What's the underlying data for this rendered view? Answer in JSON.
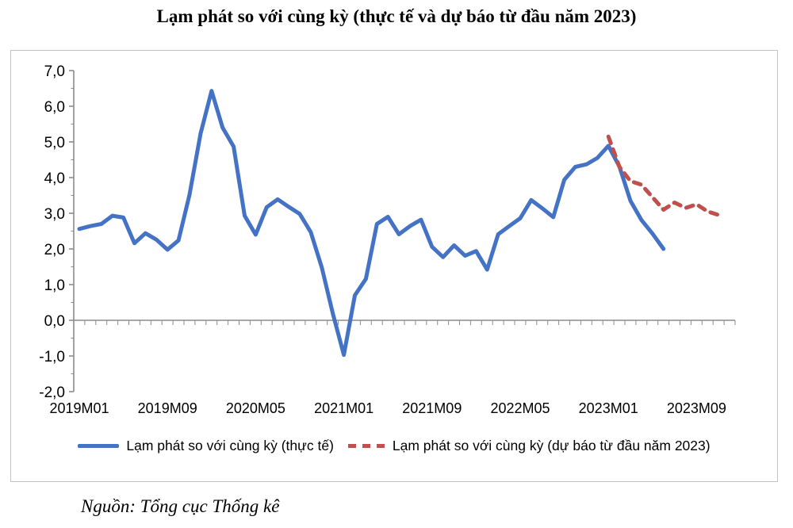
{
  "source": "Nguồn: Tổng cục Thống kê",
  "chart_data": {
    "type": "line",
    "title": "Lạm phát so với cùng kỳ (thực tế và dự báo từ đầu năm 2023)",
    "grid": "off",
    "legend_position": "bottom",
    "x_axis": {
      "start_month": "2019M01",
      "months_total": 60,
      "tick_labels": [
        "2019M01",
        "2019M09",
        "2020M05",
        "2021M01",
        "2021M09",
        "2022M05",
        "2023M01",
        "2023M09"
      ],
      "label_step_months": 8
    },
    "y_axis": {
      "ylim": [
        -2.0,
        7.0
      ],
      "tick_values": [
        7,
        6,
        5,
        4,
        3,
        2,
        1,
        0,
        -1,
        -2
      ],
      "tick_labels": [
        "7,0",
        "6,0",
        "5,0",
        "4,0",
        "3,0",
        "2,0",
        "1,0",
        "0,0",
        "-1,0",
        "-2,0"
      ]
    },
    "axis_color": "#8c8c8c",
    "series": [
      {
        "name": "Lạm phát so với cùng kỳ (thực tế)",
        "color": "#4472C4",
        "style": "solid",
        "start_month_index": 0,
        "values": [
          2.56,
          2.64,
          2.7,
          2.93,
          2.88,
          2.16,
          2.44,
          2.26,
          1.98,
          2.24,
          3.52,
          5.23,
          6.43,
          5.4,
          4.87,
          2.93,
          2.4,
          3.17,
          3.39,
          3.18,
          2.98,
          2.47,
          1.48,
          0.19,
          -0.97,
          0.7,
          1.16,
          2.7,
          2.9,
          2.41,
          2.64,
          2.82,
          2.06,
          1.77,
          2.1,
          1.81,
          1.94,
          1.42,
          2.41,
          2.64,
          2.86,
          3.37,
          3.14,
          2.89,
          3.94,
          4.3,
          4.37,
          4.55,
          4.89,
          4.31,
          3.35,
          2.81,
          2.43,
          2.0
        ]
      },
      {
        "name": "Lạm phát so với cùng kỳ (dự báo từ đầu năm 2023)",
        "color": "#C0504D",
        "style": "dashed",
        "start_month_index": 48,
        "values": [
          5.15,
          4.3,
          3.9,
          3.8,
          3.45,
          3.1,
          3.3,
          3.15,
          3.25,
          3.05,
          2.95
        ]
      }
    ]
  }
}
